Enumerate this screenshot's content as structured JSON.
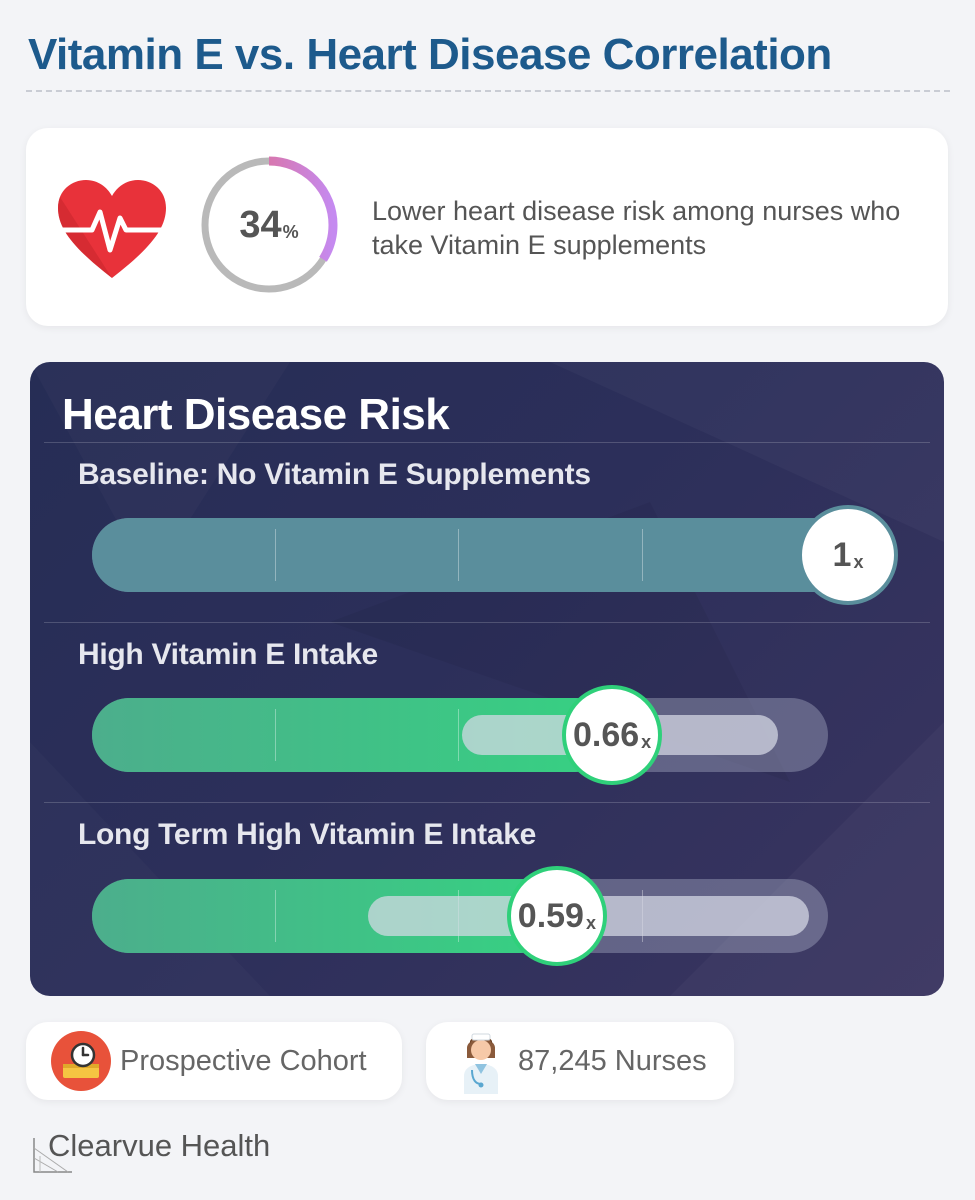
{
  "title": "Vitamin E vs. Heart Disease Correlation",
  "stat": {
    "value": "34",
    "unit": "%",
    "fraction": 0.34,
    "description": "Lower heart disease risk among nurses who take Vitamin E supplements",
    "icon": "heart-pulse-icon",
    "colors": {
      "heart": "#e8323a",
      "ring_start": "#e9646e",
      "ring_end": "#c58af0",
      "ring_track": "#b9b9b9"
    }
  },
  "chart_data": {
    "type": "bar",
    "title": "Heart Disease Risk",
    "xlim": [
      0,
      1
    ],
    "unit": "x",
    "categories": [
      "Baseline: No Vitamin E Supplements",
      "High Vitamin E Intake",
      "Long Term High Vitamin E Intake"
    ],
    "values": [
      1,
      0.66,
      0.59
    ],
    "value_labels": [
      "1",
      "0.66",
      "0.59"
    ],
    "ranges": [
      null,
      [
        0.47,
        0.87
      ],
      [
        0.35,
        0.91
      ]
    ],
    "colors": {
      "baseline": "#5a8e9c",
      "reduced": "#36d182"
    }
  },
  "footer": {
    "study_design": "Prospective Cohort",
    "study_icon": "clock-calendar-icon",
    "participants": "87,245 Nurses",
    "participants_icon": "nurse-icon",
    "brand": "Clearvue Health"
  }
}
